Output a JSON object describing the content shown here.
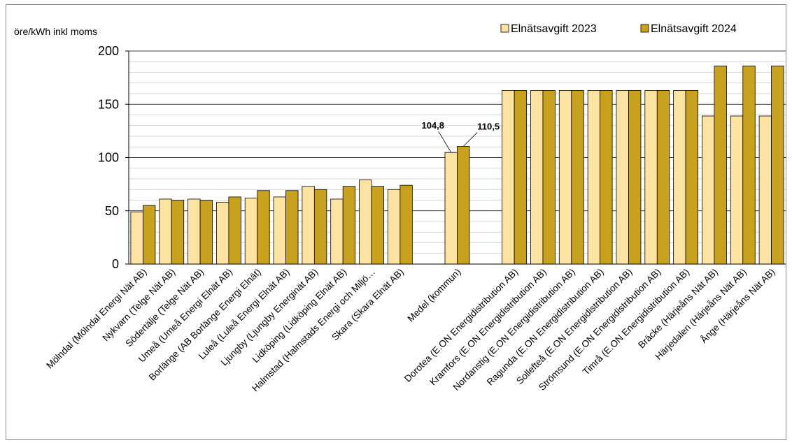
{
  "chart_data": {
    "type": "bar",
    "ylabel": "öre/kWh inkl moms",
    "ylim": [
      0,
      200
    ],
    "yticks": [
      0,
      50,
      100,
      150,
      200
    ],
    "grid": true,
    "legend_position": "top-right",
    "categories": [
      "Mölndal (Mölndal Energi Nät AB)",
      "Nykvarn (Telge Nät AB)",
      "Södertälje (Telge Nät AB)",
      "Umeå (Umeå Energi Elnät AB)",
      "Borlänge (AB Borlänge Energi Elnät)",
      "Luleå (Luleå Energi Elnät AB)",
      "Ljungby (Ljungby Energinät AB)",
      "Lidköping (Lidköping Elnät AB)",
      "Halmstad (Halmstads Energi och Miljö…",
      "Skara (Skara Elnät AB)",
      "",
      "Medel (kommun)",
      "",
      "Dorotea (E.ON Energidistribution AB)",
      "Kramfors (E.ON Energidistribution AB)",
      "Nordanstig (E.ON Energidistribution AB)",
      "Ragunda (E.ON Energidistribution AB)",
      "Sollefteå (E.ON Energidistribution AB)",
      "Strömsund (E.ON Energidistribution AB)",
      "Timrå (E.ON Energidistribution AB)",
      "Bräcke (Härjeåns Nät AB)",
      "Härjedalen (Härjeåns Nät AB)",
      "Ånge (Härjeåns Nät AB)"
    ],
    "series": [
      {
        "name": "Elnätsavgift 2023",
        "color": "#fde3a1",
        "values": [
          49,
          61,
          61,
          58,
          62,
          63,
          73,
          61,
          79,
          70,
          null,
          104.8,
          null,
          163,
          163,
          163,
          163,
          163,
          163,
          163,
          139,
          139,
          139
        ]
      },
      {
        "name": "Elnätsavgift 2024",
        "color": "#c8a21e",
        "values": [
          55,
          60,
          60,
          63,
          69,
          69,
          70,
          73,
          73,
          74,
          null,
          110.5,
          null,
          163,
          163,
          163,
          163,
          163,
          163,
          163,
          186,
          186,
          186
        ]
      }
    ],
    "annotations": [
      {
        "text": "104,8",
        "category_index": 11,
        "series_index": 0
      },
      {
        "text": "110,5",
        "category_index": 11,
        "series_index": 1
      }
    ]
  }
}
